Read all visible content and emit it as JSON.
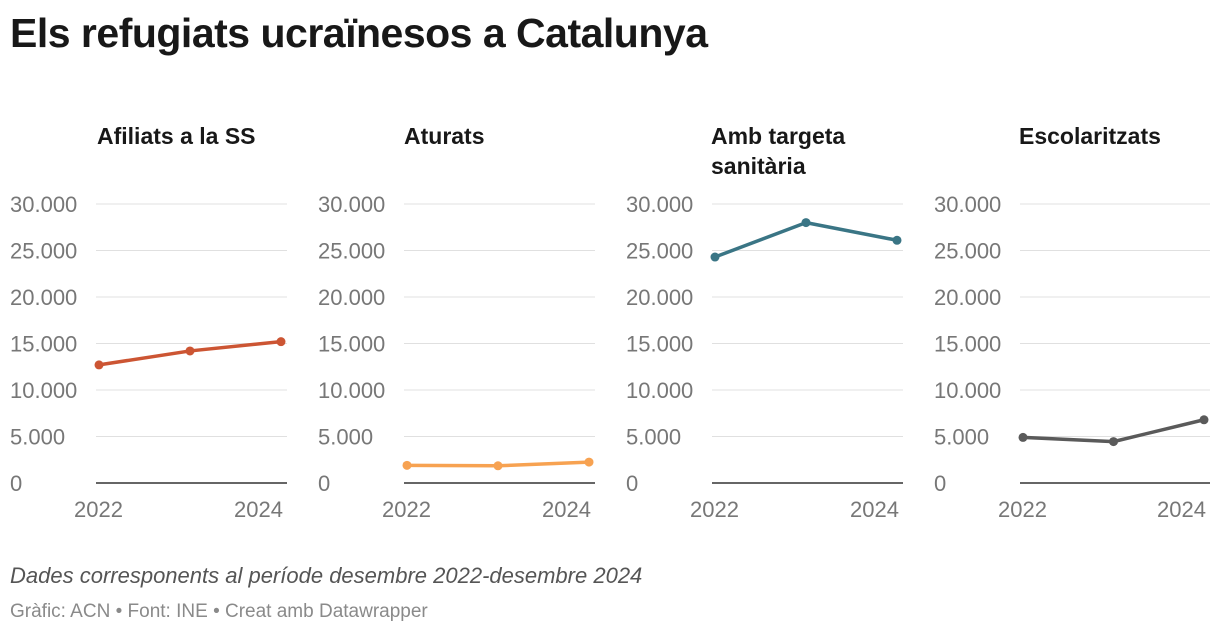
{
  "header": {
    "title": "Els refugiats ucraïnesos a Catalunya"
  },
  "footer": {
    "note": "Dades corresponents al període desembre 2022-desembre 2024",
    "credit_prefix": "Gràfic: ACN",
    "credit_source": "Font: INE",
    "credit_tool": "Creat amb Datawrapper",
    "separator": "•"
  },
  "chart_data": [
    {
      "type": "line",
      "title": "Afiliats a la SS",
      "color": "#cc5533",
      "x": [
        2022.0,
        2023.0,
        2024.0
      ],
      "y": [
        12700,
        14200,
        15200
      ],
      "ylim": [
        0,
        30000
      ],
      "yticks": [
        0,
        5000,
        10000,
        15000,
        20000,
        25000,
        30000
      ],
      "ytick_labels": [
        "0",
        "5.000",
        "10.000",
        "15.000",
        "20.000",
        "25.000",
        "30.000"
      ],
      "xticks": [
        2022,
        2024
      ],
      "xtick_labels": [
        "2022",
        "2024"
      ]
    },
    {
      "type": "line",
      "title": "Aturats",
      "color": "#f7a251",
      "x": [
        2022.0,
        2023.0,
        2024.0
      ],
      "y": [
        1900,
        1850,
        2250
      ],
      "ylim": [
        0,
        30000
      ],
      "yticks": [
        0,
        5000,
        10000,
        15000,
        20000,
        25000,
        30000
      ],
      "ytick_labels": [
        "0",
        "5.000",
        "10.000",
        "15.000",
        "20.000",
        "25.000",
        "30.000"
      ],
      "xticks": [
        2022,
        2024
      ],
      "xtick_labels": [
        "2022",
        "2024"
      ]
    },
    {
      "type": "line",
      "title": "Amb targeta sanitària",
      "color": "#3a7585",
      "x": [
        2022.0,
        2023.0,
        2024.0
      ],
      "y": [
        24300,
        28000,
        26100
      ],
      "ylim": [
        0,
        30000
      ],
      "yticks": [
        0,
        5000,
        10000,
        15000,
        20000,
        25000,
        30000
      ],
      "ytick_labels": [
        "0",
        "5.000",
        "10.000",
        "15.000",
        "20.000",
        "25.000",
        "30.000"
      ],
      "xticks": [
        2022,
        2024
      ],
      "xtick_labels": [
        "2022",
        "2024"
      ]
    },
    {
      "type": "line",
      "title": "Escolaritzats",
      "color": "#5a5a5a",
      "x": [
        2022.0,
        2023.0,
        2024.0
      ],
      "y": [
        4900,
        4450,
        6800
      ],
      "ylim": [
        0,
        30000
      ],
      "yticks": [
        0,
        5000,
        10000,
        15000,
        20000,
        25000,
        30000
      ],
      "ytick_labels": [
        "0",
        "5.000",
        "10.000",
        "15.000",
        "20.000",
        "25.000",
        "30.000"
      ],
      "xticks": [
        2022,
        2024
      ],
      "xtick_labels": [
        "2022",
        "2024"
      ]
    }
  ]
}
